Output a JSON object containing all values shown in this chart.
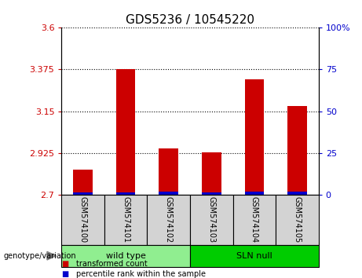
{
  "title": "GDS5236 / 10545220",
  "samples": [
    "GSM574100",
    "GSM574101",
    "GSM574102",
    "GSM574103",
    "GSM574104",
    "GSM574105"
  ],
  "red_values": [
    2.835,
    3.375,
    2.95,
    2.93,
    3.32,
    3.18
  ],
  "blue_values": [
    2.713,
    2.713,
    2.718,
    2.712,
    2.715,
    2.715
  ],
  "y_min": 2.7,
  "y_max": 3.6,
  "y_ticks": [
    2.7,
    2.925,
    3.15,
    3.375,
    3.6
  ],
  "y_ticks_labels": [
    "2.7",
    "2.925",
    "3.15",
    "3.375",
    "3.6"
  ],
  "y_right_ticks": [
    0,
    25,
    50,
    75,
    100
  ],
  "y_right_labels": [
    "0",
    "25",
    "50",
    "75",
    "100%"
  ],
  "groups": [
    {
      "label": "wild type",
      "indices": [
        0,
        1,
        2
      ],
      "color": "#90ee90"
    },
    {
      "label": "SLN null",
      "indices": [
        3,
        4,
        5
      ],
      "color": "#00cc00"
    }
  ],
  "genotype_label": "genotype/variation",
  "legend_items": [
    {
      "label": "transformed count",
      "color": "#cc0000"
    },
    {
      "label": "percentile rank within the sample",
      "color": "#0000cc"
    }
  ],
  "left_axis_color": "#cc0000",
  "right_axis_color": "#0000cc",
  "bar_width": 0.45,
  "grid_color": "black",
  "bg_xlabel": "#d3d3d3",
  "title_fontsize": 11,
  "tick_fontsize": 8,
  "label_fontsize": 7
}
